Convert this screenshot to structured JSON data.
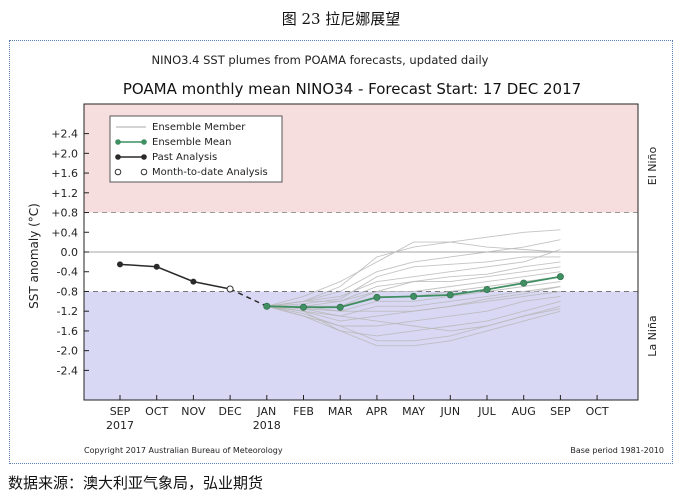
{
  "caption": "图 23  拉尼娜展望",
  "source_note": "数据来源：澳大利亚气象局，弘业期货",
  "chart_data": {
    "type": "line",
    "subtitle": "NINO3.4 SST plumes from POAMA forecasts, updated daily",
    "title": "POAMA monthly mean NINO34 - Forecast Start: 17 DEC 2017",
    "ylabel": "SST anomaly (°C)",
    "ylim": [
      -3.0,
      3.0
    ],
    "yticks": [
      "+2.4",
      "+2.0",
      "+1.6",
      "+1.2",
      "+0.8",
      "+0.4",
      "0.0",
      "-0.4",
      "-0.8",
      "-1.2",
      "-1.6",
      "-2.0",
      "-2.4"
    ],
    "x_tick_labels": [
      "SEP",
      "OCT",
      "NOV",
      "DEC",
      "JAN",
      "FEB",
      "MAR",
      "APR",
      "MAY",
      "JUN",
      "JUL",
      "AUG",
      "SEP",
      "OCT"
    ],
    "x_year_labels": [
      {
        "at": "SEP",
        "label": "2017"
      },
      {
        "at": "JAN",
        "label": "2018"
      }
    ],
    "thresholds": {
      "el_nino": 0.8,
      "la_nina": -0.8
    },
    "region_labels": {
      "el_nino": "El Niño",
      "la_nina": "La Niña"
    },
    "colors": {
      "el_nino_band": "#f6dede",
      "la_nina_band": "#d8d8f4",
      "ensemble_mean": "#3f8f62",
      "past": "#2a2a2a",
      "member": "#b9b9b9"
    },
    "legend": {
      "position": "top-left",
      "entries": [
        "Ensemble Member",
        "Ensemble Mean",
        "Past Analysis",
        "Month-to-date Analysis"
      ]
    },
    "series": [
      {
        "name": "Past Analysis",
        "x": [
          "SEP",
          "OCT",
          "NOV"
        ],
        "values": [
          -0.25,
          -0.3,
          -0.6
        ]
      },
      {
        "name": "Month-to-date Analysis",
        "x": [
          "DEC"
        ],
        "values": [
          -0.75
        ]
      },
      {
        "name": "Ensemble Mean",
        "x": [
          "JAN",
          "FEB",
          "MAR",
          "APR",
          "MAY",
          "JUN",
          "JUL",
          "AUG",
          "SEP"
        ],
        "values": [
          -1.1,
          -1.12,
          -1.12,
          -0.92,
          -0.9,
          -0.87,
          -0.76,
          -0.63,
          -0.5
        ]
      }
    ],
    "ensemble_members": [
      [
        -1.1,
        -0.9,
        -0.6,
        -0.2,
        0.2,
        0.2,
        0.1,
        0.05,
        0.0
      ],
      [
        -1.1,
        -1.0,
        -0.7,
        -0.1,
        0.1,
        0.2,
        0.3,
        0.4,
        0.45
      ],
      [
        -1.1,
        -1.0,
        -0.8,
        -0.4,
        -0.2,
        -0.1,
        0.0,
        0.1,
        0.25
      ],
      [
        -1.1,
        -1.0,
        -0.9,
        -0.6,
        -0.5,
        -0.4,
        -0.3,
        -0.2,
        0.05
      ],
      [
        -1.1,
        -1.1,
        -1.0,
        -0.7,
        -0.6,
        -0.6,
        -0.5,
        -0.4,
        -0.3
      ],
      [
        -1.1,
        -1.1,
        -1.1,
        -0.8,
        -0.8,
        -0.7,
        -0.6,
        -0.5,
        -0.4
      ],
      [
        -1.1,
        -1.1,
        -1.1,
        -0.9,
        -0.9,
        -0.8,
        -0.7,
        -0.6,
        -0.5
      ],
      [
        -1.1,
        -1.15,
        -1.2,
        -1.0,
        -1.0,
        -0.9,
        -0.8,
        -0.7,
        -0.6
      ],
      [
        -1.1,
        -1.2,
        -1.3,
        -1.1,
        -1.1,
        -1.0,
        -0.9,
        -0.8,
        -0.7
      ],
      [
        -1.1,
        -1.2,
        -1.4,
        -1.3,
        -1.2,
        -1.1,
        -1.0,
        -0.9,
        -0.8
      ],
      [
        -1.1,
        -1.25,
        -1.5,
        -1.5,
        -1.4,
        -1.3,
        -1.2,
        -1.0,
        -0.9
      ],
      [
        -1.1,
        -1.3,
        -1.6,
        -1.7,
        -1.6,
        -1.5,
        -1.4,
        -1.2,
        -1.0
      ],
      [
        -1.1,
        -1.3,
        -1.5,
        -1.8,
        -1.8,
        -1.7,
        -1.5,
        -1.3,
        -1.1
      ],
      [
        -1.1,
        -1.2,
        -1.6,
        -1.9,
        -1.9,
        -1.8,
        -1.6,
        -1.4,
        -1.2
      ],
      [
        -1.1,
        -1.15,
        -1.3,
        -1.4,
        -1.5,
        -1.6,
        -1.5,
        -1.3,
        -1.15
      ],
      [
        -1.1,
        -1.0,
        -1.0,
        -0.8,
        -0.6,
        -0.5,
        -0.45,
        -0.3,
        -0.2
      ],
      [
        -1.1,
        -1.05,
        -0.95,
        -0.5,
        -0.3,
        -0.25,
        -0.2,
        -0.1,
        -0.1
      ],
      [
        -1.1,
        -1.1,
        -1.2,
        -1.2,
        -1.2,
        -1.1,
        -0.95,
        -0.85,
        -0.7
      ]
    ],
    "footer_left": "Copyright 2017 Australian Bureau of Meteorology",
    "footer_right": "Base period 1981-2010"
  }
}
